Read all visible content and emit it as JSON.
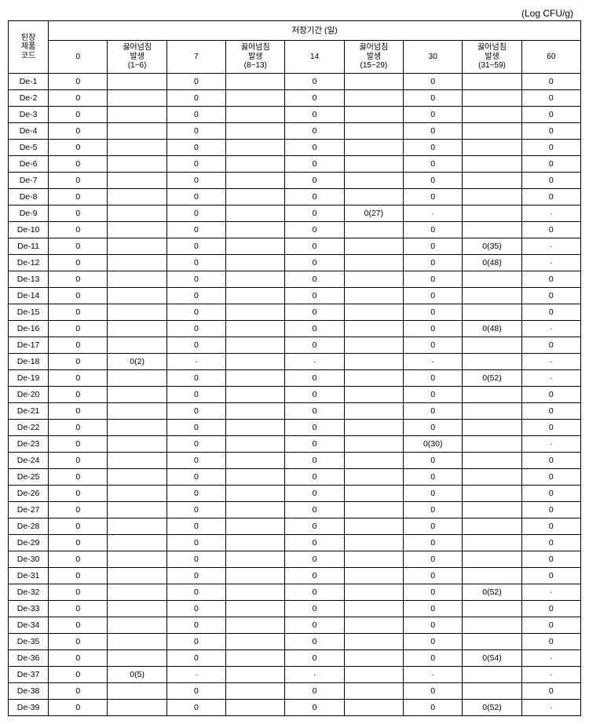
{
  "unit_label": "(Log CFU/g)",
  "header": {
    "row_label": "된장\n제품\n코드",
    "top_label": "저장기간 (일)",
    "cols": [
      "0",
      "끓어넘침\n발생\n(1~6)",
      "7",
      "끓어넘침\n발생\n(8~13)",
      "14",
      "끓어넘침\n발생\n(15~29)",
      "30",
      "끓어넘침\n발생\n(31~59)",
      "60"
    ]
  },
  "rows": [
    {
      "code": "De-1",
      "c": [
        "0",
        "",
        "0",
        "",
        "0",
        "",
        "0",
        "",
        "0"
      ]
    },
    {
      "code": "De-2",
      "c": [
        "0",
        "",
        "0",
        "",
        "0",
        "",
        "0",
        "",
        "0"
      ]
    },
    {
      "code": "De-3",
      "c": [
        "0",
        "",
        "0",
        "",
        "0",
        "",
        "0",
        "",
        "0"
      ]
    },
    {
      "code": "De-4",
      "c": [
        "0",
        "",
        "0",
        "",
        "0",
        "",
        "0",
        "",
        "0"
      ]
    },
    {
      "code": "De-5",
      "c": [
        "0",
        "",
        "0",
        "",
        "0",
        "",
        "0",
        "",
        "0"
      ]
    },
    {
      "code": "De-6",
      "c": [
        "0",
        "",
        "0",
        "",
        "0",
        "",
        "0",
        "",
        "0"
      ]
    },
    {
      "code": "De-7",
      "c": [
        "0",
        "",
        "0",
        "",
        "0",
        "",
        "0",
        "",
        "0"
      ]
    },
    {
      "code": "De-8",
      "c": [
        "0",
        "",
        "0",
        "",
        "0",
        "",
        "0",
        "",
        "0"
      ]
    },
    {
      "code": "De-9",
      "c": [
        "0",
        "",
        "0",
        "",
        "0",
        "0(27)",
        "·",
        "",
        "·"
      ]
    },
    {
      "code": "De-10",
      "c": [
        "0",
        "",
        "0",
        "",
        "0",
        "",
        "0",
        "",
        "0"
      ]
    },
    {
      "code": "De-11",
      "c": [
        "0",
        "",
        "0",
        "",
        "0",
        "",
        "0",
        "0(35)",
        "·"
      ]
    },
    {
      "code": "De-12",
      "c": [
        "0",
        "",
        "0",
        "",
        "0",
        "",
        "0",
        "0(48)",
        "·"
      ]
    },
    {
      "code": "De-13",
      "c": [
        "0",
        "",
        "0",
        "",
        "0",
        "",
        "0",
        "",
        "0"
      ]
    },
    {
      "code": "De-14",
      "c": [
        "0",
        "",
        "0",
        "",
        "0",
        "",
        "0",
        "",
        "0"
      ]
    },
    {
      "code": "De-15",
      "c": [
        "0",
        "",
        "0",
        "",
        "0",
        "",
        "0",
        "",
        "0"
      ]
    },
    {
      "code": "De-16",
      "c": [
        "0",
        "",
        "0",
        "",
        "0",
        "",
        "0",
        "0(48)",
        "·"
      ]
    },
    {
      "code": "De-17",
      "c": [
        "0",
        "",
        "0",
        "",
        "0",
        "",
        "0",
        "",
        "0"
      ]
    },
    {
      "code": "De-18",
      "c": [
        "0",
        "0(2)",
        "·",
        "",
        "·",
        "",
        "·",
        "",
        "·"
      ]
    },
    {
      "code": "De-19",
      "c": [
        "0",
        "",
        "0",
        "",
        "0",
        "",
        "0",
        "0(52)",
        "·"
      ]
    },
    {
      "code": "De-20",
      "c": [
        "0",
        "",
        "0",
        "",
        "0",
        "",
        "0",
        "",
        "0"
      ]
    },
    {
      "code": "De-21",
      "c": [
        "0",
        "",
        "0",
        "",
        "0",
        "",
        "0",
        "",
        "0"
      ]
    },
    {
      "code": "De-22",
      "c": [
        "0",
        "",
        "0",
        "",
        "0",
        "",
        "0",
        "",
        "0"
      ]
    },
    {
      "code": "De-23",
      "c": [
        "0",
        "",
        "0",
        "",
        "0",
        "",
        "0(30)",
        "",
        "·"
      ]
    },
    {
      "code": "De-24",
      "c": [
        "0",
        "",
        "0",
        "",
        "0",
        "",
        "0",
        "",
        "0"
      ]
    },
    {
      "code": "De-25",
      "c": [
        "0",
        "",
        "0",
        "",
        "0",
        "",
        "0",
        "",
        "0"
      ]
    },
    {
      "code": "De-26",
      "c": [
        "0",
        "",
        "0",
        "",
        "0",
        "",
        "0",
        "",
        "0"
      ]
    },
    {
      "code": "De-27",
      "c": [
        "0",
        "",
        "0",
        "",
        "0",
        "",
        "0",
        "",
        "0"
      ]
    },
    {
      "code": "De-28",
      "c": [
        "0",
        "",
        "0",
        "",
        "0",
        "",
        "0",
        "",
        "0"
      ]
    },
    {
      "code": "De-29",
      "c": [
        "0",
        "",
        "0",
        "",
        "0",
        "",
        "0",
        "",
        "0"
      ]
    },
    {
      "code": "De-30",
      "c": [
        "0",
        "",
        "0",
        "",
        "0",
        "",
        "0",
        "",
        "0"
      ]
    },
    {
      "code": "De-31",
      "c": [
        "0",
        "",
        "0",
        "",
        "0",
        "",
        "0",
        "",
        "0"
      ]
    },
    {
      "code": "De-32",
      "c": [
        "0",
        "",
        "0",
        "",
        "0",
        "",
        "0",
        "0(52)",
        "·"
      ]
    },
    {
      "code": "De-33",
      "c": [
        "0",
        "",
        "0",
        "",
        "0",
        "",
        "0",
        "",
        "0"
      ]
    },
    {
      "code": "De-34",
      "c": [
        "0",
        "",
        "0",
        "",
        "0",
        "",
        "0",
        "",
        "0"
      ]
    },
    {
      "code": "De-35",
      "c": [
        "0",
        "",
        "0",
        "",
        "0",
        "",
        "0",
        "",
        "0"
      ]
    },
    {
      "code": "De-36",
      "c": [
        "0",
        "",
        "0",
        "",
        "0",
        "",
        "0",
        "0(54)",
        "·"
      ]
    },
    {
      "code": "De-37",
      "c": [
        "0",
        "0(5)",
        "·",
        "",
        "·",
        "",
        "·",
        "",
        "·"
      ]
    },
    {
      "code": "De-38",
      "c": [
        "0",
        "",
        "0",
        "",
        "0",
        "",
        "0",
        "",
        "0"
      ]
    },
    {
      "code": "De-39",
      "c": [
        "0",
        "",
        "0",
        "",
        "0",
        "",
        "0",
        "0(52)",
        "·"
      ]
    }
  ]
}
